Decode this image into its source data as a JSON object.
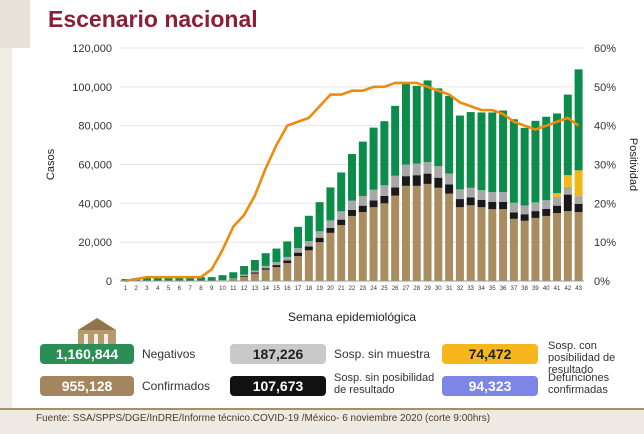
{
  "title": "Escenario nacional",
  "chart_data": {
    "type": "bar",
    "stacked": true,
    "xlabel": "Semana epidemiológica",
    "ylabel": "Casos",
    "y2label": "Positividad",
    "ylim": [
      0,
      120000
    ],
    "y2lim": [
      0,
      60
    ],
    "yticks": [
      "0",
      "20,000",
      "40,000",
      "60,000",
      "80,000",
      "100,000",
      "120,000"
    ],
    "y2ticks": [
      "0%",
      "10%",
      "20%",
      "30%",
      "40%",
      "50%",
      "60%"
    ],
    "categories": [
      "1",
      "2",
      "3",
      "4",
      "5",
      "6",
      "7",
      "8",
      "9",
      "10",
      "11",
      "12",
      "13",
      "14",
      "15",
      "16",
      "17",
      "18",
      "19",
      "20",
      "21",
      "22",
      "23",
      "24",
      "25",
      "26",
      "27",
      "28",
      "29",
      "30",
      "31",
      "32",
      "33",
      "34",
      "35",
      "36",
      "37",
      "38",
      "39",
      "40",
      "41",
      "42",
      "43"
    ],
    "series": [
      {
        "name": "Confirmados",
        "color": "#a98c60",
        "values": [
          0,
          0,
          0,
          0,
          0,
          0,
          0,
          0,
          0,
          200,
          1000,
          2200,
          3800,
          5800,
          7200,
          9200,
          12800,
          15800,
          20000,
          24800,
          28800,
          33500,
          35500,
          38000,
          40000,
          44000,
          49000,
          49000,
          50000,
          48000,
          45000,
          38000,
          39000,
          38000,
          37000,
          37000,
          32000,
          31000,
          32500,
          33500,
          35000,
          36000,
          35500
        ]
      },
      {
        "name": "Sosp. sin posibilidad de resultado",
        "color": "#1a1a1a",
        "values": [
          0,
          0,
          0,
          0,
          0,
          0,
          0,
          0,
          0,
          100,
          200,
          400,
          600,
          800,
          1000,
          1400,
          1800,
          2000,
          2300,
          2600,
          2800,
          3100,
          3300,
          3500,
          3800,
          4200,
          5000,
          5500,
          5300,
          5200,
          4800,
          4200,
          4000,
          3800,
          3800,
          3800,
          3300,
          3400,
          3500,
          3600,
          3800,
          8500,
          4200
        ]
      },
      {
        "name": "Sosp. sin muestra",
        "color": "#a8a8a8",
        "values": [
          0,
          0,
          0,
          0,
          0,
          0,
          0,
          0,
          0,
          200,
          300,
          600,
          900,
          1200,
          1500,
          1800,
          2300,
          2800,
          3300,
          3800,
          4300,
          4800,
          5000,
          5500,
          5500,
          6000,
          6000,
          6000,
          6000,
          6000,
          5500,
          5000,
          5000,
          5000,
          5000,
          5000,
          5000,
          4500,
          4500,
          4500,
          4500,
          4000,
          4000
        ]
      },
      {
        "name": "Sosp. con posibilidad de resultado",
        "color": "#f2b818",
        "values": [
          0,
          0,
          0,
          0,
          0,
          0,
          0,
          0,
          0,
          0,
          0,
          0,
          0,
          0,
          0,
          0,
          0,
          0,
          0,
          0,
          0,
          0,
          0,
          0,
          0,
          0,
          0,
          0,
          0,
          0,
          0,
          0,
          0,
          0,
          0,
          0,
          0,
          0,
          0,
          0,
          2000,
          6000,
          13300
        ]
      },
      {
        "name": "Negativos",
        "color": "#0b8c4a",
        "values": [
          1000,
          1500,
          2000,
          2000,
          2000,
          2000,
          2000,
          2000,
          2000,
          2500,
          3000,
          4500,
          5500,
          6500,
          7000,
          8000,
          11000,
          13000,
          15000,
          17000,
          20000,
          24000,
          28000,
          32000,
          33000,
          36000,
          42000,
          40000,
          42000,
          40000,
          40000,
          38000,
          39000,
          40000,
          41000,
          42000,
          43000,
          40000,
          42000,
          43000,
          41000,
          41500,
          52000
        ]
      }
    ],
    "line": {
      "name": "Positividad",
      "color": "#ef8a0f",
      "values": [
        0,
        0.5,
        1,
        1,
        1,
        1,
        1,
        1,
        3,
        8,
        14,
        17,
        22,
        29,
        35,
        40,
        41,
        42,
        45,
        48,
        48,
        49,
        49,
        50,
        50,
        51,
        51,
        51,
        50,
        49,
        48,
        46,
        45,
        44,
        44,
        43,
        41,
        40,
        39,
        40,
        41,
        42,
        40
      ]
    }
  },
  "legend": [
    {
      "value": "1,160,844",
      "label": "Negativos",
      "color": "#2a8e55"
    },
    {
      "value": "187,226",
      "label": "Sosp. sin muestra",
      "color": "#c9c9c9"
    },
    {
      "value": "74,472",
      "label": "Sosp. con posibilidad de resultado",
      "color": "#f5b71c"
    },
    {
      "value": "955,128",
      "label": "Confirmados",
      "color": "#a3865d"
    },
    {
      "value": "107,673",
      "label": "Sosp. sin posibilidad de resultado",
      "color": "#111111"
    },
    {
      "value": "94,323",
      "label": "Defunciones confirmadas",
      "color": "#7d85e6"
    }
  ],
  "source": "Fuente: SSA/SPPS/DGE/InDRE/Informe técnico.COVID-19 /México- 6 noviembre 2020 (corte 9:00hrs)"
}
